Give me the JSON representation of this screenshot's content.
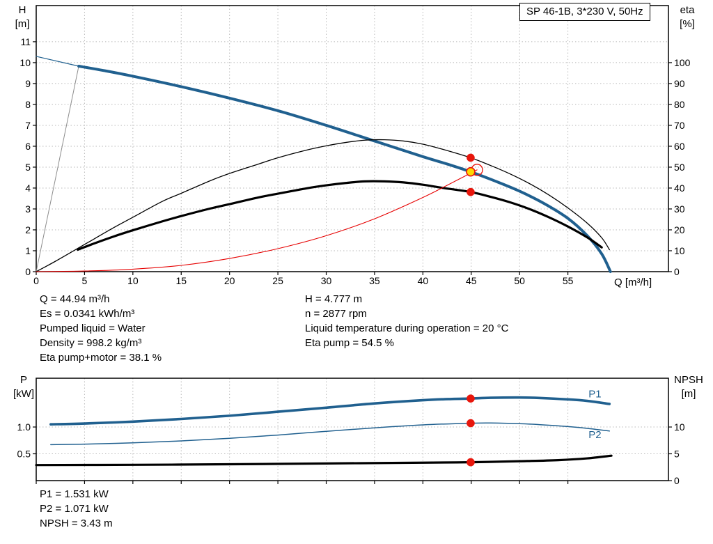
{
  "colors": {
    "curve_blue": "#20608f",
    "curve_black": "#000000",
    "curve_red": "#e60000",
    "dot_red": "#e8160c",
    "dot_yellow": "#ffd800",
    "grid": "#b8b8b8",
    "grid_dark": "#8c8c8c",
    "frame": "#000000",
    "label_blue": "#20608f"
  },
  "results_top": {
    "left": [
      "Q = 44.94 m³/h",
      "Es = 0.0341 kWh/m³",
      "Pumped liquid = Water",
      "Density = 998.2 kg/m³",
      "Eta pump+motor = 38.1 %"
    ],
    "right": [
      "H = 4.777 m",
      "n = 2877 rpm",
      "Liquid temperature during operation = 20 °C",
      "Eta pump = 54.5 %"
    ]
  },
  "results_bottom": [
    "P1 = 1.531 kW",
    "P2 = 1.071 kW",
    "NPSH = 3.43 m"
  ],
  "chart_data": [
    {
      "type": "line",
      "title": "SP 46-1B, 3*230 V, 50Hz",
      "x_axis": {
        "label": "Q [m³/h]",
        "min": 0,
        "max": 65.4,
        "ticks": [
          0,
          5,
          10,
          15,
          20,
          25,
          30,
          35,
          40,
          45,
          50,
          55
        ],
        "tick_decimals": 0,
        "show_labels": true
      },
      "y_left": {
        "label": "H",
        "unit": "[m]",
        "min": 0,
        "max": 12.73,
        "ticks": [
          0,
          1,
          2,
          3,
          4,
          5,
          6,
          7,
          8,
          9,
          10,
          11
        ],
        "tick_decimals": 0
      },
      "y_right": {
        "label": "eta",
        "unit": "[%]",
        "min": 0,
        "max": 127.3,
        "ticks": [
          0,
          10,
          20,
          30,
          40,
          50,
          60,
          70,
          80,
          90,
          100
        ],
        "tick_decimals": 0
      },
      "grid": true,
      "series": [
        {
          "name": "min-flow-line",
          "axis": "left",
          "color_key": "grid_dark",
          "width": 1,
          "points": [
            [
              0,
              0
            ],
            [
              4.4,
              9.83
            ]
          ]
        },
        {
          "name": "h-curve-lead",
          "axis": "left",
          "color_key": "curve_blue",
          "width": 1.2,
          "points": [
            [
              0,
              10.3
            ],
            [
              4.4,
              9.83
            ]
          ]
        },
        {
          "name": "h-curve",
          "axis": "left",
          "color_key": "curve_blue",
          "width": 4,
          "points": [
            [
              4.4,
              9.83
            ],
            [
              7,
              9.62
            ],
            [
              10,
              9.35
            ],
            [
              15,
              8.85
            ],
            [
              20,
              8.3
            ],
            [
              25,
              7.7
            ],
            [
              30,
              7.0
            ],
            [
              35,
              6.25
            ],
            [
              40,
              5.5
            ],
            [
              42.5,
              5.15
            ],
            [
              44.94,
              4.777
            ],
            [
              47.5,
              4.33
            ],
            [
              50,
              3.85
            ],
            [
              52.5,
              3.27
            ],
            [
              55,
              2.55
            ],
            [
              57,
              1.72
            ],
            [
              58.5,
              0.85
            ],
            [
              59.4,
              0
            ]
          ]
        },
        {
          "name": "eta-pump-curve",
          "axis": "right",
          "color_key": "curve_black",
          "width": 1.3,
          "points": [
            [
              0,
              0
            ],
            [
              2,
              5
            ],
            [
              5,
              13
            ],
            [
              8,
              21
            ],
            [
              10,
              26
            ],
            [
              13,
              33.5
            ],
            [
              15,
              37.5
            ],
            [
              18,
              43.5
            ],
            [
              20,
              47
            ],
            [
              23,
              51.5
            ],
            [
              25,
              54.5
            ],
            [
              28,
              58.2
            ],
            [
              30,
              60.2
            ],
            [
              32,
              61.8
            ],
            [
              34,
              62.9
            ],
            [
              36,
              63.1
            ],
            [
              38,
              62.5
            ],
            [
              40,
              61
            ],
            [
              42,
              58.6
            ],
            [
              44.94,
              54.5
            ],
            [
              47,
              50.8
            ],
            [
              49,
              46.8
            ],
            [
              51,
              42.2
            ],
            [
              53,
              36.8
            ],
            [
              55,
              30.5
            ],
            [
              57,
              23.2
            ],
            [
              58.5,
              16.2
            ],
            [
              59.3,
              10.5
            ]
          ]
        },
        {
          "name": "eta-pump-motor-curve",
          "axis": "right",
          "color_key": "curve_black",
          "width": 3.2,
          "points": [
            [
              4.3,
              10.5
            ],
            [
              6,
              13.5
            ],
            [
              8,
              16.8
            ],
            [
              10,
              19.8
            ],
            [
              13,
              24
            ],
            [
              15,
              26.6
            ],
            [
              18,
              30.2
            ],
            [
              20,
              32.3
            ],
            [
              23,
              35.5
            ],
            [
              25,
              37.3
            ],
            [
              28,
              39.9
            ],
            [
              30,
              41.3
            ],
            [
              32,
              42.4
            ],
            [
              34,
              43.2
            ],
            [
              36,
              43.2
            ],
            [
              38,
              42.7
            ],
            [
              40,
              41.6
            ],
            [
              42,
              40.1
            ],
            [
              44.94,
              38.1
            ],
            [
              47,
              35.8
            ],
            [
              49,
              33.2
            ],
            [
              51,
              30
            ],
            [
              53,
              26.1
            ],
            [
              55,
              21.6
            ],
            [
              57,
              16.4
            ],
            [
              58.5,
              11.6
            ]
          ]
        },
        {
          "name": "system-curve",
          "axis": "left",
          "color_key": "curve_red",
          "width": 1.1,
          "points": [
            [
              0,
              0
            ],
            [
              5,
              0.03
            ],
            [
              10,
              0.12
            ],
            [
              15,
              0.3
            ],
            [
              20,
              0.63
            ],
            [
              25,
              1.1
            ],
            [
              30,
              1.72
            ],
            [
              35,
              2.53
            ],
            [
              40,
              3.55
            ],
            [
              43,
              4.25
            ],
            [
              45.6,
              4.87
            ]
          ]
        }
      ],
      "markers": [
        {
          "name": "eta-pump-point",
          "q": 44.94,
          "v": 54.5,
          "axis": "right",
          "style": "dot"
        },
        {
          "name": "eta-pump-motor-point",
          "q": 44.94,
          "v": 38.1,
          "axis": "right",
          "style": "dot"
        },
        {
          "name": "system-curve-end",
          "q": 45.6,
          "v": 4.87,
          "axis": "left",
          "style": "ring"
        },
        {
          "name": "duty-point",
          "q": 44.94,
          "v": 4.777,
          "axis": "left",
          "style": "duty"
        }
      ],
      "annotations": []
    },
    {
      "type": "line",
      "title": "",
      "x_axis": {
        "label": "",
        "min": 0,
        "max": 65.4,
        "ticks": [
          0,
          5,
          10,
          15,
          20,
          25,
          30,
          35,
          40,
          45,
          50,
          55
        ],
        "tick_decimals": 0,
        "show_labels": false
      },
      "y_left": {
        "label": "P",
        "unit": "[kW]",
        "min": 0,
        "max": 1.91,
        "ticks": [
          0.5,
          1.0
        ],
        "tick_decimals": 1
      },
      "y_right": {
        "label": "NPSH",
        "unit": "[m]",
        "min": 0,
        "max": 19.1,
        "ticks": [
          0,
          5,
          10
        ],
        "tick_decimals": 0
      },
      "grid": true,
      "series": [
        {
          "name": "p1-curve",
          "axis": "left",
          "color_key": "curve_blue",
          "width": 3.6,
          "points": [
            [
              1.5,
              1.05
            ],
            [
              5,
              1.065
            ],
            [
              10,
              1.1
            ],
            [
              15,
              1.15
            ],
            [
              20,
              1.21
            ],
            [
              25,
              1.285
            ],
            [
              30,
              1.36
            ],
            [
              35,
              1.44
            ],
            [
              40,
              1.5
            ],
            [
              43,
              1.523
            ],
            [
              44.94,
              1.531
            ],
            [
              47,
              1.545
            ],
            [
              50,
              1.55
            ],
            [
              52,
              1.542
            ],
            [
              55,
              1.515
            ],
            [
              57,
              1.487
            ],
            [
              59.3,
              1.43
            ]
          ]
        },
        {
          "name": "p2-curve",
          "axis": "left",
          "color_key": "curve_blue",
          "width": 1.5,
          "points": [
            [
              1.5,
              0.67
            ],
            [
              5,
              0.68
            ],
            [
              10,
              0.705
            ],
            [
              15,
              0.74
            ],
            [
              20,
              0.79
            ],
            [
              25,
              0.85
            ],
            [
              30,
              0.92
            ],
            [
              35,
              0.985
            ],
            [
              40,
              1.04
            ],
            [
              44.94,
              1.071
            ],
            [
              47,
              1.075
            ],
            [
              50,
              1.063
            ],
            [
              52,
              1.045
            ],
            [
              55,
              1.008
            ],
            [
              57,
              0.975
            ],
            [
              59.3,
              0.925
            ]
          ]
        },
        {
          "name": "npsh-curve",
          "axis": "right",
          "color_key": "curve_black",
          "width": 3.2,
          "points": [
            [
              0,
              2.9
            ],
            [
              10,
              2.95
            ],
            [
              20,
              3.05
            ],
            [
              30,
              3.2
            ],
            [
              40,
              3.35
            ],
            [
              44.94,
              3.43
            ],
            [
              50,
              3.62
            ],
            [
              54,
              3.82
            ],
            [
              57,
              4.15
            ],
            [
              59.5,
              4.65
            ]
          ]
        }
      ],
      "markers": [
        {
          "name": "p1-point",
          "q": 44.94,
          "v": 1.531,
          "axis": "left",
          "style": "dot"
        },
        {
          "name": "p2-point",
          "q": 44.94,
          "v": 1.071,
          "axis": "left",
          "style": "dot"
        },
        {
          "name": "npsh-point",
          "q": 44.94,
          "v": 3.43,
          "axis": "right",
          "style": "dot"
        }
      ],
      "annotations": [
        {
          "text": "P1",
          "q": 57.8,
          "v": 1.62,
          "color_key": "label_blue"
        },
        {
          "text": "P2",
          "q": 57.8,
          "v": 0.86,
          "color_key": "label_blue"
        }
      ]
    }
  ]
}
